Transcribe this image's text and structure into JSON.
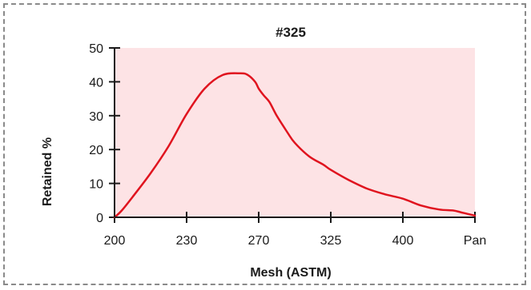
{
  "chart_data": {
    "type": "area",
    "title": "#325",
    "xlabel": "Mesh (ASTM)",
    "ylabel": "Retained %",
    "categories": [
      "200",
      "230",
      "270",
      "325",
      "400",
      "Pan"
    ],
    "ylim": [
      0,
      50
    ],
    "yticks": [
      0,
      10,
      20,
      30,
      40,
      50
    ],
    "series": [
      {
        "x": [
          0,
          0.1,
          0.25,
          0.5,
          0.75,
          1,
          1.25,
          1.5,
          1.75,
          1.85,
          1.95,
          2,
          2.07,
          2.15,
          2.25,
          2.4,
          2.5,
          2.7,
          2.9,
          3,
          3.25,
          3.5,
          3.75,
          4,
          4.25,
          4.5,
          4.7,
          4.8,
          4.9,
          5
        ],
        "y": [
          0,
          2,
          6,
          13,
          21,
          30.5,
          38,
          42,
          42.5,
          42,
          40,
          38,
          36,
          34,
          30,
          25,
          22,
          18,
          15.5,
          14,
          11,
          8.5,
          6.8,
          5.5,
          3.5,
          2.3,
          2,
          1.5,
          1,
          0.5
        ]
      }
    ],
    "colors": {
      "fill": "#fde3e5",
      "line": "#e0141f",
      "axis": "#1a1a1a"
    }
  }
}
